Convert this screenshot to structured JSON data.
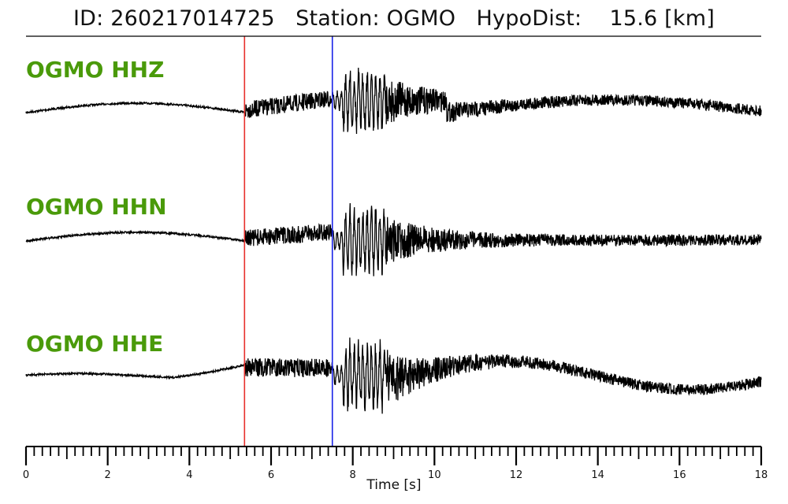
{
  "header": {
    "id_label": "ID:",
    "id_value": "260217014725",
    "station_label": "Station:",
    "station_value": "OGMO",
    "dist_label": "HypoDist:",
    "dist_value": "15.6",
    "dist_unit": "[km]"
  },
  "colors": {
    "label": "#4a9a0a",
    "trace": "#000000",
    "p_pick": "#e8302c",
    "s_pick": "#1a22e6",
    "axis": "#000000"
  },
  "chart_data": {
    "type": "line",
    "title": "ID: 260217014725   Station: OGMO   HypoDist:    15.6 [km]",
    "xlabel": "Time [s]",
    "ylabel": "",
    "xlim": [
      0,
      18
    ],
    "major_ticks": [
      "0",
      "2",
      "4",
      "6",
      "8",
      "10",
      "12",
      "14",
      "16",
      "18"
    ],
    "minor_tick_step": 0.2,
    "grid": false,
    "picks": [
      {
        "phase": "P",
        "time": 5.35,
        "color": "#e8302c"
      },
      {
        "phase": "S",
        "time": 7.5,
        "color": "#1a22e6"
      }
    ],
    "series": [
      {
        "name": "OGMO HHZ"
      },
      {
        "name": "OGMO HHN"
      },
      {
        "name": "OGMO HHE"
      }
    ]
  }
}
